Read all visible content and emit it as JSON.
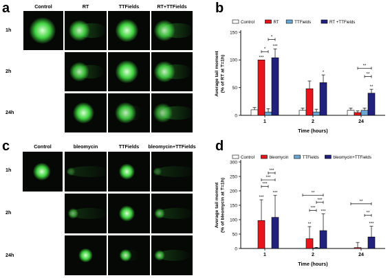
{
  "panels": {
    "a": {
      "letter": "a",
      "columns": [
        "Control",
        "RT",
        "TTFields",
        "RT+TTFields"
      ],
      "rows": [
        "1h",
        "2h",
        "24h"
      ]
    },
    "b": {
      "letter": "b"
    },
    "c": {
      "letter": "c",
      "columns": [
        "Control",
        "bleomycin",
        "TTFields",
        "bleomycin+TTFields"
      ],
      "rows": [
        "1h",
        "2h",
        "24h"
      ]
    },
    "d": {
      "letter": "d"
    }
  },
  "colors": {
    "control": "#ffffff",
    "treatment": "#e8161c",
    "ttfields": "#6aa8d3",
    "combo": "#22227e",
    "comet": "#3fd23f",
    "cell_bg": "#050805"
  },
  "chart_data": [
    {
      "type": "bar",
      "panel": "b",
      "categories": [
        "1",
        "2",
        "24"
      ],
      "series": [
        {
          "name": "Control",
          "values": [
            10,
            9,
            9
          ],
          "errors": [
            4,
            4,
            4
          ]
        },
        {
          "name": "RT",
          "values": [
            100,
            48,
            5
          ],
          "errors": [
            0,
            14,
            3
          ]
        },
        {
          "name": "TTFields",
          "values": [
            6,
            6,
            9
          ],
          "errors": [
            6,
            5,
            4
          ]
        },
        {
          "name": "RT +TTFields",
          "values": [
            104,
            59,
            40
          ],
          "errors": [
            16,
            14,
            7
          ]
        }
      ],
      "xlabel": "Time (hours)",
      "ylabel_lines": [
        "Average tail moment",
        "(% of RT at T=1h)"
      ],
      "ylim": [
        0,
        150
      ],
      "yticks": [
        "0",
        "50",
        "100",
        "150"
      ],
      "legend_position": "top",
      "annotations": [
        {
          "cat": 0,
          "series": 1,
          "text": "***"
        },
        {
          "cat": 0,
          "series": 3,
          "text": "***"
        },
        {
          "cat": 1,
          "series": 3,
          "text": "*"
        },
        {
          "cat": 2,
          "series": 3,
          "text": "**"
        }
      ],
      "brackets": [
        {
          "cat": 0,
          "from": 1,
          "to": 2,
          "value": 115,
          "text": "*"
        },
        {
          "cat": 0,
          "from": 2,
          "to": 3,
          "value": 137,
          "text": "*"
        },
        {
          "cat": 2,
          "from": 2,
          "to": 3,
          "value": 70,
          "text": "**"
        },
        {
          "cat": 2,
          "from": 1,
          "to": 3,
          "value": 85,
          "text": "**"
        }
      ]
    },
    {
      "type": "bar",
      "panel": "d",
      "categories": [
        "1",
        "2",
        "24"
      ],
      "series": [
        {
          "name": "Control",
          "values": [
            0,
            0,
            0
          ],
          "errors": [
            0,
            0,
            0
          ]
        },
        {
          "name": "bleomycin",
          "values": [
            97,
            34,
            3
          ],
          "errors": [
            72,
            42,
            18
          ]
        },
        {
          "name": "TTFields",
          "values": [
            0,
            2,
            0
          ],
          "errors": [
            0,
            2,
            0
          ]
        },
        {
          "name": "bleomycin+TTFields",
          "values": [
            108,
            62,
            40
          ],
          "errors": [
            76,
            58,
            37
          ]
        }
      ],
      "xlabel": "Time (hours)",
      "ylabel_lines": [
        "Average tail moment",
        "(% of bleomycin at T=1h)"
      ],
      "ylim": [
        0,
        300
      ],
      "yticks": [
        "0",
        "50",
        "100",
        "150",
        "200",
        "250",
        "300"
      ],
      "legend_position": "top",
      "annotations": [
        {
          "cat": 0,
          "series": 1,
          "text": "***"
        },
        {
          "cat": 0,
          "series": 3,
          "text": "***"
        },
        {
          "cat": 1,
          "series": 1,
          "text": "**"
        },
        {
          "cat": 1,
          "series": 3,
          "text": "***"
        },
        {
          "cat": 2,
          "series": 3,
          "text": "***"
        }
      ],
      "brackets": [
        {
          "cat": 0,
          "from": 1,
          "to": 2,
          "value": 215,
          "text": "***"
        },
        {
          "cat": 0,
          "from": 1,
          "to": 3,
          "value": 238,
          "text": "***"
        },
        {
          "cat": 0,
          "from": 2,
          "to": 3,
          "value": 262,
          "text": "***"
        },
        {
          "cat": 1,
          "from": 1,
          "to": 2,
          "value": 132,
          "text": "***"
        },
        {
          "cat": 1,
          "from": 2,
          "to": 3,
          "value": 160,
          "text": "***"
        },
        {
          "cat": 1,
          "from": 0,
          "to": 3,
          "value": 185,
          "text": "**"
        },
        {
          "cat": 2,
          "from": 2,
          "to": 3,
          "value": 115,
          "text": "**"
        },
        {
          "cat": 2,
          "from": 0,
          "to": 3,
          "value": 155,
          "text": "**"
        }
      ]
    }
  ]
}
